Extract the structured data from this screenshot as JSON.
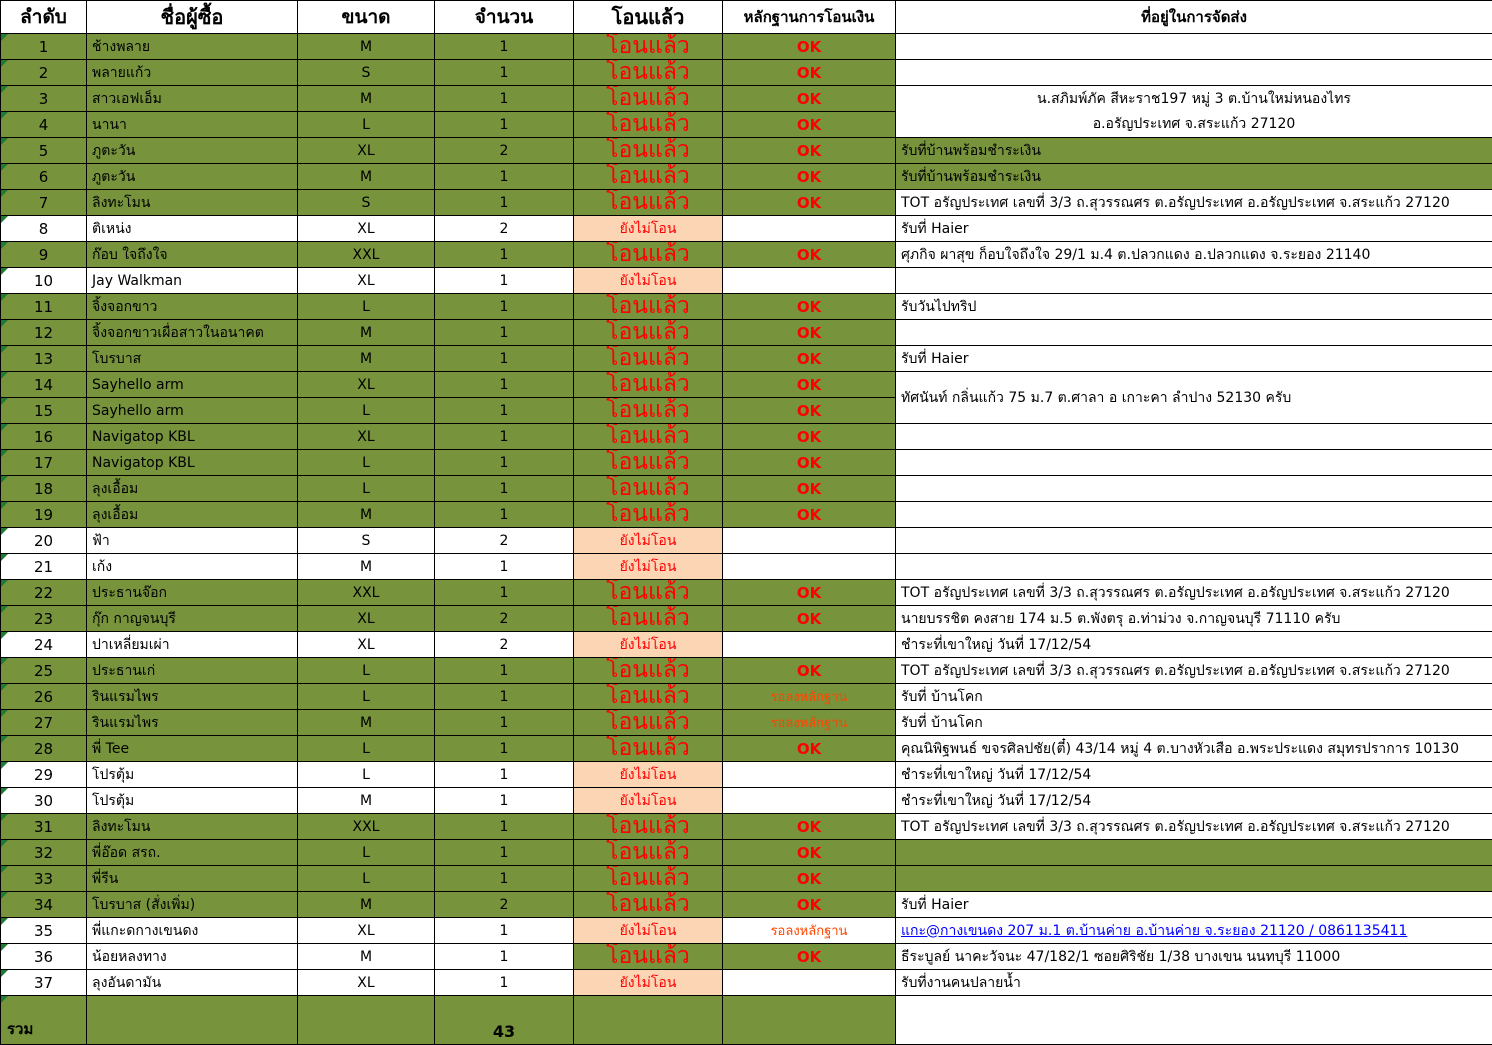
{
  "columns": [
    "ลำดับ",
    "ชื่อผู้ซื้อ",
    "ขนาด",
    "จำนวน",
    "โอนแล้ว",
    "หลักฐานการโอนเงิน",
    "ที่อยู่ในการจัดส่ง"
  ],
  "labels": {
    "paid": "โอนแล้ว",
    "unpaid": "ยังไม่โอน",
    "ok": "OK",
    "wait": "รอลงหลักฐาน"
  },
  "footer": {
    "label": "รวม",
    "qty": "43"
  },
  "colors": {
    "row_green": "#77933C",
    "unpaid_peach": "#FCD5B4",
    "status_red": "#FF0000",
    "wait_orange": "#FF4500",
    "link_blue": "#0000FF",
    "flag_green": "#1E7A34"
  },
  "rows": [
    {
      "no": 1,
      "name": "ช้างพลาย",
      "size": "M",
      "qty": 1,
      "paid": true,
      "evidence": "ok",
      "bg": "green",
      "addr": {
        "text": "",
        "bg": "white"
      }
    },
    {
      "no": 2,
      "name": "พลายแก้ว",
      "size": "S",
      "qty": 1,
      "paid": true,
      "evidence": "ok",
      "bg": "green",
      "addr": {
        "text": "",
        "bg": "white"
      }
    },
    {
      "no": 3,
      "name": "สาวเอฟเอ็ม",
      "size": "M",
      "qty": 1,
      "paid": true,
      "evidence": "ok",
      "bg": "green",
      "addr": {
        "text": "น.สภิมพ์ภัค สีหะราช197 หมู่ 3 ต.บ้านใหม่หนองไทร\nอ.อรัญประเทศ จ.สระแก้ว 27120",
        "bg": "white",
        "span": 2,
        "center": true
      }
    },
    {
      "no": 4,
      "name": "นานา",
      "size": "L",
      "qty": 1,
      "paid": true,
      "evidence": "ok",
      "bg": "green",
      "addr": null
    },
    {
      "no": 5,
      "name": "ภูตะวัน",
      "size": "XL",
      "qty": 2,
      "paid": true,
      "evidence": "ok",
      "bg": "green",
      "addr": {
        "text": "รับที่บ้านพร้อมชำระเงิน",
        "bg": "green"
      }
    },
    {
      "no": 6,
      "name": "ภูตะวัน",
      "size": "M",
      "qty": 1,
      "paid": true,
      "evidence": "ok",
      "bg": "green",
      "addr": {
        "text": "รับที่บ้านพร้อมชำระเงิน",
        "bg": "green"
      }
    },
    {
      "no": 7,
      "name": "ลิงทะโมน",
      "size": "S",
      "qty": 1,
      "paid": true,
      "evidence": "ok",
      "bg": "green",
      "addr": {
        "text": "TOT อรัญประเทศ เลขที่ 3/3 ถ.สุวรรณศร ต.อรัญประเทศ อ.อรัญประเทศ จ.สระแก้ว 27120",
        "bg": "white"
      }
    },
    {
      "no": 8,
      "name": "ติเหน่ง",
      "size": "XL",
      "qty": 2,
      "paid": false,
      "evidence": "",
      "bg": "white",
      "addr": {
        "text": "รับที่ Haier",
        "bg": "white"
      }
    },
    {
      "no": 9,
      "name": "ก๊อบ ใจถึงใจ",
      "size": "XXL",
      "qty": 1,
      "paid": true,
      "evidence": "ok",
      "bg": "green",
      "addr": {
        "text": "ศุภกิจ ผาสุข ก็อบใจถึงใจ 29/1 ม.4 ต.ปลวกแดง อ.ปลวกแดง จ.ระยอง 21140",
        "bg": "white"
      }
    },
    {
      "no": 10,
      "name": "Jay Walkman",
      "size": "XL",
      "qty": 1,
      "paid": false,
      "evidence": "",
      "bg": "white",
      "addr": {
        "text": "",
        "bg": "white"
      }
    },
    {
      "no": 11,
      "name": "จิ้งจอกขาว",
      "size": "L",
      "qty": 1,
      "paid": true,
      "evidence": "ok",
      "bg": "green",
      "addr": {
        "text": "รับวันไปทริป",
        "bg": "white"
      }
    },
    {
      "no": 12,
      "name": "จิ้งจอกขาวเผื่อสาวในอนาคต",
      "size": "M",
      "qty": 1,
      "paid": true,
      "evidence": "ok",
      "bg": "green",
      "addr": {
        "text": "",
        "bg": "white"
      }
    },
    {
      "no": 13,
      "name": "โบรบาส",
      "size": "M",
      "qty": 1,
      "paid": true,
      "evidence": "ok",
      "bg": "green",
      "addr": {
        "text": "รับที่ Haier",
        "bg": "white"
      }
    },
    {
      "no": 14,
      "name": "Sayhello arm",
      "size": "XL",
      "qty": 1,
      "paid": true,
      "evidence": "ok",
      "bg": "green",
      "addr": {
        "text": "ทัศนันท์ กลิ่นแก้ว 75 ม.7 ต.ศาลา อ เกาะคา ลำปาง 52130 ครับ",
        "bg": "white",
        "span": 2
      }
    },
    {
      "no": 15,
      "name": "Sayhello arm",
      "size": "L",
      "qty": 1,
      "paid": true,
      "evidence": "ok",
      "bg": "green",
      "addr": null
    },
    {
      "no": 16,
      "name": "Navigatop KBL",
      "size": "XL",
      "qty": 1,
      "paid": true,
      "evidence": "ok",
      "bg": "green",
      "addr": {
        "text": "",
        "bg": "white"
      }
    },
    {
      "no": 17,
      "name": "Navigatop KBL",
      "size": "L",
      "qty": 1,
      "paid": true,
      "evidence": "ok",
      "bg": "green",
      "addr": {
        "text": "",
        "bg": "white"
      }
    },
    {
      "no": 18,
      "name": "ลุงเอื้อม",
      "size": "L",
      "qty": 1,
      "paid": true,
      "evidence": "ok",
      "bg": "green",
      "addr": {
        "text": "",
        "bg": "white"
      }
    },
    {
      "no": 19,
      "name": "ลุงเอื้อม",
      "size": "M",
      "qty": 1,
      "paid": true,
      "evidence": "ok",
      "bg": "green",
      "addr": {
        "text": "",
        "bg": "white"
      }
    },
    {
      "no": 20,
      "name": "ฟ้า",
      "size": "S",
      "qty": 2,
      "paid": false,
      "evidence": "",
      "bg": "white",
      "addr": {
        "text": "",
        "bg": "white"
      }
    },
    {
      "no": 21,
      "name": "เก้ง",
      "size": "M",
      "qty": 1,
      "paid": false,
      "evidence": "",
      "bg": "white",
      "addr": {
        "text": "",
        "bg": "white"
      }
    },
    {
      "no": 22,
      "name": "ประธานจ๊อก",
      "size": "XXL",
      "qty": 1,
      "paid": true,
      "evidence": "ok",
      "bg": "green",
      "addr": {
        "text": "TOT อรัญประเทศ เลขที่ 3/3 ถ.สุวรรณศร ต.อรัญประเทศ อ.อรัญประเทศ จ.สระแก้ว 27120",
        "bg": "white"
      }
    },
    {
      "no": 23,
      "name": "กุ๊ก กาญจนบุรี",
      "size": "XL",
      "qty": 2,
      "paid": true,
      "evidence": "ok",
      "bg": "green",
      "addr": {
        "text": "นายบรรชิต คงสาย 174 ม.5 ต.พังตรุ อ.ท่าม่วง จ.กาญจนบุรี 71110 ครับ",
        "bg": "white"
      }
    },
    {
      "no": 24,
      "name": "ปาเหลี่ยมเผ่า",
      "size": "XL",
      "qty": 2,
      "paid": false,
      "evidence": "",
      "bg": "white",
      "addr": {
        "text": "ชำระที่เขาใหญ่ วันที่ 17/12/54",
        "bg": "white"
      }
    },
    {
      "no": 25,
      "name": "ประธานเก่",
      "size": "L",
      "qty": 1,
      "paid": true,
      "evidence": "ok",
      "bg": "green",
      "addr": {
        "text": "TOT อรัญประเทศ เลขที่ 3/3 ถ.สุวรรณศร ต.อรัญประเทศ อ.อรัญประเทศ จ.สระแก้ว 27120",
        "bg": "white"
      }
    },
    {
      "no": 26,
      "name": "รินแรมไพร",
      "size": "L",
      "qty": 1,
      "paid": true,
      "evidence": "wait",
      "bg": "green",
      "addr": {
        "text": "รับที่ บ้านโคก",
        "bg": "white"
      }
    },
    {
      "no": 27,
      "name": "รินแรมไพร",
      "size": "M",
      "qty": 1,
      "paid": true,
      "evidence": "wait",
      "bg": "green",
      "addr": {
        "text": "รับที่ บ้านโคก",
        "bg": "white"
      }
    },
    {
      "no": 28,
      "name": "พี่ Tee",
      "size": "L",
      "qty": 1,
      "paid": true,
      "evidence": "ok",
      "bg": "green",
      "addr": {
        "text": "คุณนิพิฐพนธ์ ขจรศิลปชัย(ตี๋) 43/14 หมู่ 4 ต.บางหัวเสือ อ.พระประแดง สมุทรปราการ 10130",
        "bg": "white"
      }
    },
    {
      "no": 29,
      "name": "โปรตุ้ม",
      "size": "L",
      "qty": 1,
      "paid": false,
      "evidence": "",
      "bg": "white",
      "addr": {
        "text": "ชำระที่เขาใหญ่ วันที่ 17/12/54",
        "bg": "white"
      }
    },
    {
      "no": 30,
      "name": "โปรตุ้ม",
      "size": "M",
      "qty": 1,
      "paid": false,
      "evidence": "",
      "bg": "white",
      "addr": {
        "text": "ชำระที่เขาใหญ่ วันที่ 17/12/54",
        "bg": "white"
      }
    },
    {
      "no": 31,
      "name": "ลิงทะโมน",
      "size": "XXL",
      "qty": 1,
      "paid": true,
      "evidence": "ok",
      "bg": "green",
      "addr": {
        "text": "TOT อรัญประเทศ เลขที่ 3/3 ถ.สุวรรณศร ต.อรัญประเทศ อ.อรัญประเทศ จ.สระแก้ว 27120",
        "bg": "white"
      }
    },
    {
      "no": 32,
      "name": "พี่อ๊อด สรถ.",
      "size": "L",
      "qty": 1,
      "paid": true,
      "evidence": "ok",
      "bg": "green",
      "addr": {
        "text": "",
        "bg": "green"
      }
    },
    {
      "no": 33,
      "name": "พี่รีน",
      "size": "L",
      "qty": 1,
      "paid": true,
      "evidence": "ok",
      "bg": "green",
      "addr": {
        "text": "",
        "bg": "green"
      }
    },
    {
      "no": 34,
      "name": "โบรบาส (สั่งเพิ่ม)",
      "size": "M",
      "qty": 2,
      "paid": true,
      "evidence": "ok",
      "bg": "green",
      "addr": {
        "text": "รับที่ Haier",
        "bg": "white"
      }
    },
    {
      "no": 35,
      "name": "พี่แกะดกางเขนดง",
      "size": "XL",
      "qty": 1,
      "paid": false,
      "evidence": "wait",
      "bg": "white",
      "addr": {
        "text": "แกะ@กางเขนดง 207 ม.1 ต.บ้านค่าย อ.บ้านค่าย จ.ระยอง 21120 / 0861135411",
        "bg": "white",
        "link": true
      }
    },
    {
      "no": 36,
      "name": "น้อยหลงทาง",
      "size": "M",
      "qty": 1,
      "paid": true,
      "evidence": "ok",
      "bg": "white",
      "addr": {
        "text": "ธีระบูลย์ นาคะวัจนะ 47/182/1 ซอยศิริชัย 1/38 บางเขน นนทบุรี 11000",
        "bg": "white"
      }
    },
    {
      "no": 37,
      "name": "ลุงอันดามัน",
      "size": "XL",
      "qty": 1,
      "paid": false,
      "evidence": "",
      "bg": "white",
      "addr": {
        "text": "รับที่งานคนปลายน้ำ",
        "bg": "white"
      }
    }
  ]
}
